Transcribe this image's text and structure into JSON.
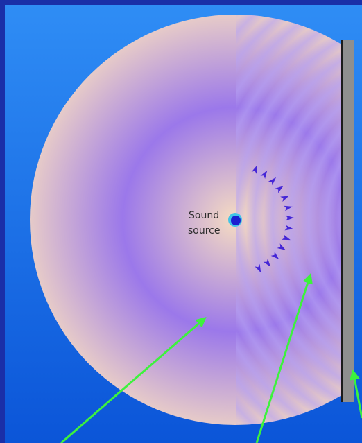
{
  "labels": {
    "source_line1": "Sound",
    "source_line2": "source"
  },
  "colors": {
    "outer_frame": "#1a2fa8",
    "panel_top": "#2f8df5",
    "panel_bottom": "#0b55d8",
    "wave_peak": "#f6dcc1",
    "wave_trough": "#9b78ea",
    "source_dot": "#1b1fd0",
    "source_ring": "#41c4e6",
    "arrowhead": "#4526d6",
    "wall": "#8f8f8f",
    "wall_edge": "#1b1b1b",
    "pointer": "#3df23d"
  },
  "icons": {
    "source": "sound-source-dot",
    "wavefront_arrows": "wavefront-arrowheads",
    "wall": "reflecting-wall",
    "pointers": "green-pointer-arrows"
  }
}
